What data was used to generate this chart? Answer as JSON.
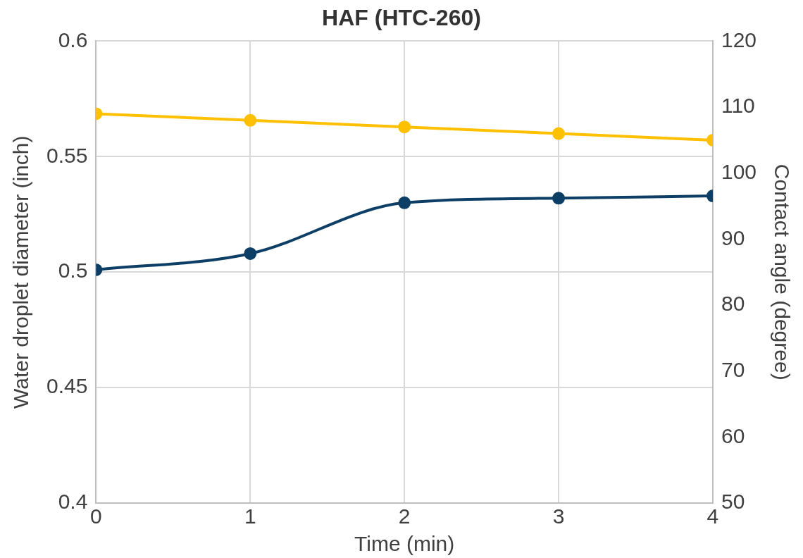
{
  "chart_data": {
    "type": "line",
    "title": "HAF (HTC-260)",
    "xlabel": "Time (min)",
    "ylabel": "Water droplet diameter (inch)",
    "y2label": "Contact angle (degree)",
    "x": [
      0,
      1,
      2,
      3,
      4
    ],
    "xlim": [
      0,
      4
    ],
    "xticks": [
      0,
      1,
      2,
      3,
      4
    ],
    "ylim": [
      0.4,
      0.6
    ],
    "yticks": [
      0.4,
      0.45,
      0.5,
      0.55,
      0.6
    ],
    "y2lim": [
      50,
      120
    ],
    "y2ticks": [
      50,
      60,
      70,
      80,
      90,
      100,
      110,
      120
    ],
    "series": [
      {
        "color": "#0d3f66",
        "values": [
          0.501,
          0.508,
          0.53,
          0.532,
          0.533
        ]
      },
      {
        "color": "#ffc000",
        "axis": "y2",
        "values": [
          109,
          108,
          107,
          106,
          105
        ]
      }
    ],
    "grid": true,
    "legend": false,
    "marker": "circle",
    "line_style": "solid"
  }
}
